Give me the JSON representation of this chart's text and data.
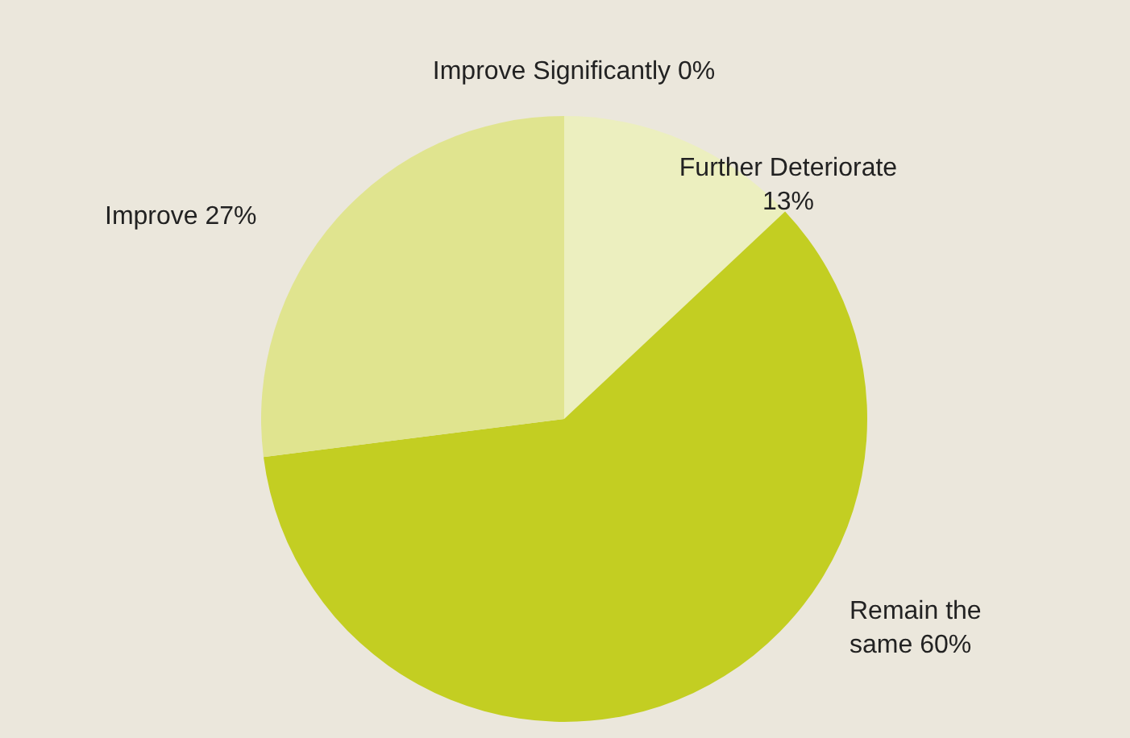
{
  "chart_data": {
    "type": "pie",
    "categories": [
      "Further Deteriorate",
      "Remain the same",
      "Improve",
      "Improve Significantly"
    ],
    "values": [
      13,
      60,
      27,
      0
    ],
    "value_labels": [
      "13%",
      "60%",
      "27%",
      "0%"
    ],
    "colors": [
      "#ecefbf",
      "#c3ce22",
      "#e0e48f",
      "#d4d96a"
    ],
    "legend": false
  }
}
